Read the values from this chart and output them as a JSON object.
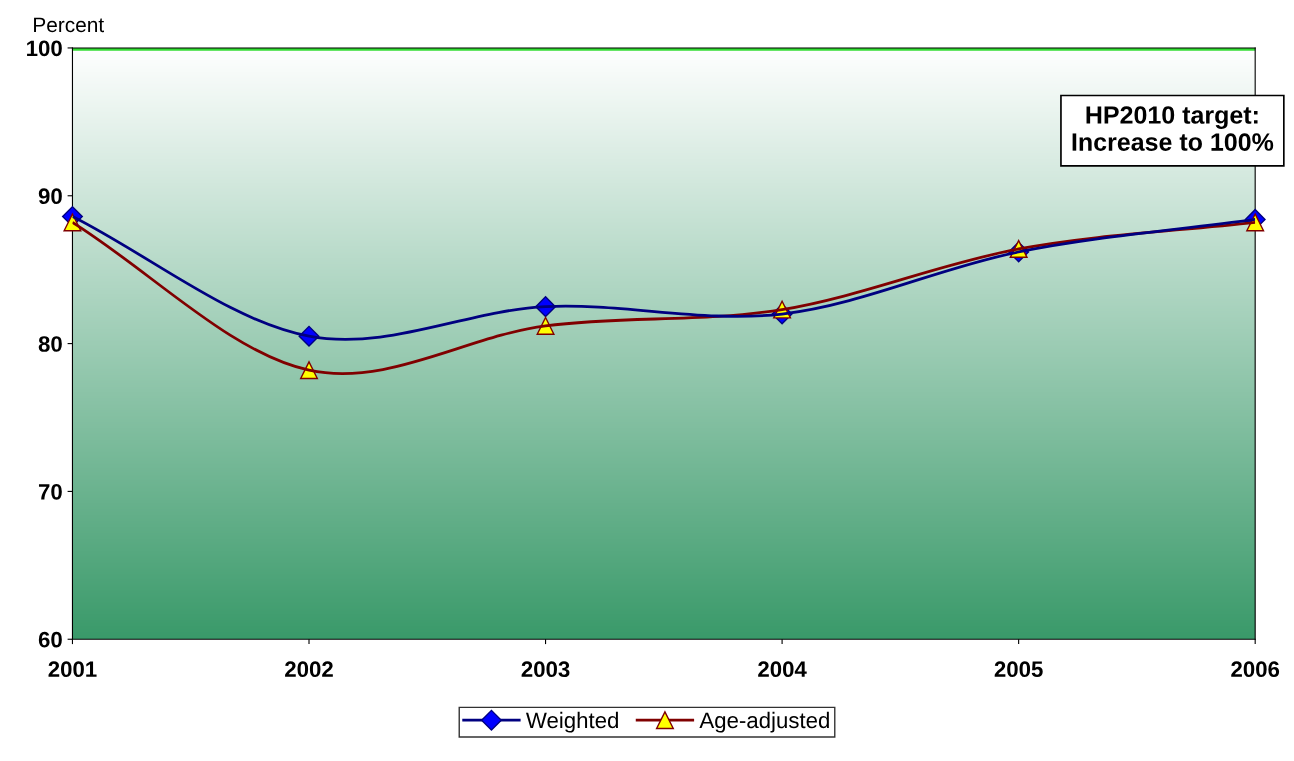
{
  "chart_data": {
    "type": "line",
    "ylabel": "Percent",
    "categories": [
      "2001",
      "2002",
      "2003",
      "2004",
      "2005",
      "2006"
    ],
    "series": [
      {
        "name": "Weighted",
        "color": "#000080",
        "marker": "diamond",
        "values": [
          88.6,
          80.5,
          82.5,
          82.0,
          86.2,
          88.4
        ]
      },
      {
        "name": "Age-adjusted",
        "color": "#800000",
        "marker": "triangle",
        "values": [
          88.2,
          78.2,
          81.2,
          82.3,
          86.4,
          88.2
        ]
      }
    ],
    "ylim": [
      60,
      100
    ],
    "yticks": [
      60,
      70,
      80,
      90,
      100
    ],
    "grid": false,
    "legend": "bottom",
    "ref_lines": [
      {
        "axis": "y",
        "value": 100,
        "label": "HP2010 target:\nIncrease to 100%",
        "color": "#33dd33"
      }
    ]
  }
}
